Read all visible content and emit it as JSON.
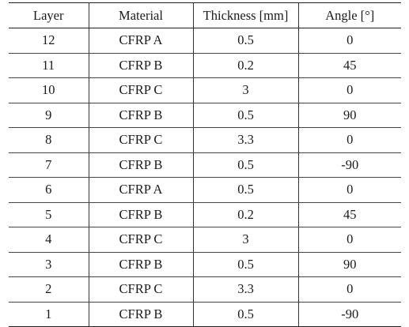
{
  "table": {
    "headers": [
      "Layer",
      "Material",
      "Thickness [mm]",
      "Angle [°]"
    ],
    "rows": [
      [
        "12",
        "CFRP A",
        "0.5",
        "0"
      ],
      [
        "11",
        "CFRP B",
        "0.2",
        "45"
      ],
      [
        "10",
        "CFRP C",
        "3",
        "0"
      ],
      [
        "9",
        "CFRP B",
        "0.5",
        "90"
      ],
      [
        "8",
        "CFRP C",
        "3.3",
        "0"
      ],
      [
        "7",
        "CFRP B",
        "0.5",
        "-90"
      ],
      [
        "6",
        "CFRP A",
        "0.5",
        "0"
      ],
      [
        "5",
        "CFRP B",
        "0.2",
        "45"
      ],
      [
        "4",
        "CFRP C",
        "3",
        "0"
      ],
      [
        "3",
        "CFRP B",
        "0.5",
        "90"
      ],
      [
        "2",
        "CFRP C",
        "3.3",
        "0"
      ],
      [
        "1",
        "CFRP B",
        "0.5",
        "-90"
      ]
    ]
  }
}
